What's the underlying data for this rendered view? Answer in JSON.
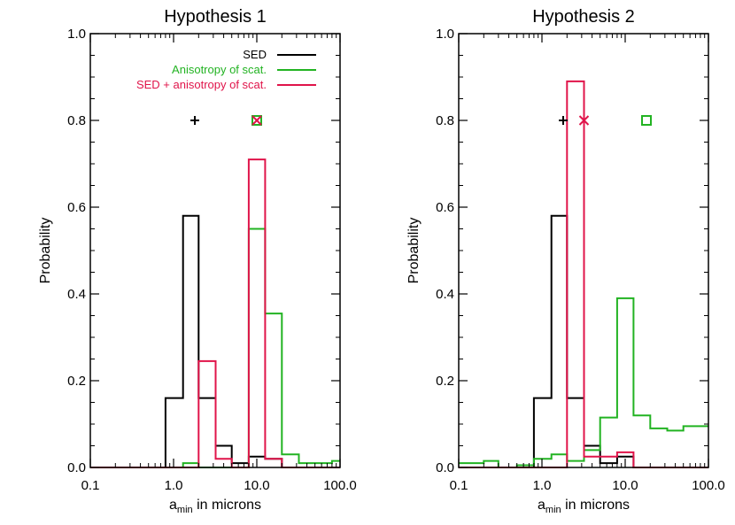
{
  "chart_data": [
    {
      "type": "histogram",
      "title": "Hypothesis 1",
      "xlabel": "a_min in microns",
      "xlabel_main": "a",
      "xlabel_sub": "min",
      "xlabel_rest": " in microns",
      "ylabel": "Probability",
      "xscale": "log",
      "xlim": [
        0.1,
        100.0
      ],
      "ylim": [
        0.0,
        1.0
      ],
      "xticks": [
        "0.1",
        "1.0",
        "10.0",
        "100.0"
      ],
      "yticks": [
        "0.0",
        "0.2",
        "0.4",
        "0.6",
        "0.8",
        "1.0"
      ],
      "legend_position": "top-right",
      "bin_edges": [
        0.1,
        0.2,
        0.3,
        0.5,
        0.8,
        1.3,
        2.0,
        3.2,
        5.0,
        8.0,
        12.6,
        20.0,
        32.0,
        50.0,
        80.0,
        100.0
      ],
      "series": [
        {
          "name": "SED",
          "color": "#000000",
          "values": [
            0.0,
            0.0,
            0.0,
            0.0,
            0.16,
            0.58,
            0.16,
            0.05,
            0.01,
            0.025,
            0.02,
            0.0,
            0.0,
            0.0,
            0.0
          ]
        },
        {
          "name": "Anisotropy of scat.",
          "color": "#22b322",
          "values": [
            0.0,
            0.0,
            0.0,
            0.0,
            0.0,
            0.01,
            0.0,
            0.0,
            0.0,
            0.55,
            0.355,
            0.03,
            0.01,
            0.01,
            0.015
          ]
        },
        {
          "name": "SED + anisotropy of scat.",
          "color": "#e0144a",
          "values": [
            0.0,
            0.0,
            0.0,
            0.0,
            0.0,
            0.0,
            0.245,
            0.02,
            0.0,
            0.71,
            0.02,
            0.0,
            0.0,
            0.0,
            0.0
          ]
        }
      ],
      "markers": [
        {
          "series": "SED",
          "symbol": "plus",
          "x": 1.8,
          "y": 0.8
        },
        {
          "series": "Anisotropy of scat.",
          "symbol": "square",
          "x": 10.0,
          "y": 0.8
        },
        {
          "series": "SED + anisotropy of scat.",
          "symbol": "x",
          "x": 10.0,
          "y": 0.8
        }
      ]
    },
    {
      "type": "histogram",
      "title": "Hypothesis 2",
      "xlabel": "a_min in microns",
      "xlabel_main": "a",
      "xlabel_sub": "min",
      "xlabel_rest": " in microns",
      "ylabel": "Probability",
      "xscale": "log",
      "xlim": [
        0.1,
        100.0
      ],
      "ylim": [
        0.0,
        1.0
      ],
      "xticks": [
        "0.1",
        "1.0",
        "10.0",
        "100.0"
      ],
      "yticks": [
        "0.0",
        "0.2",
        "0.4",
        "0.6",
        "0.8",
        "1.0"
      ],
      "bin_edges": [
        0.1,
        0.2,
        0.3,
        0.5,
        0.8,
        1.3,
        2.0,
        3.2,
        5.0,
        8.0,
        12.6,
        20.0,
        32.0,
        50.0,
        80.0,
        100.0
      ],
      "series": [
        {
          "name": "SED",
          "color": "#000000",
          "values": [
            0.0,
            0.0,
            0.0,
            0.0,
            0.16,
            0.58,
            0.16,
            0.05,
            0.01,
            0.025,
            0.0,
            0.0,
            0.0,
            0.0,
            0.0
          ]
        },
        {
          "name": "Anisotropy of scat.",
          "color": "#22b322",
          "values": [
            0.01,
            0.015,
            0.0,
            0.005,
            0.02,
            0.03,
            0.015,
            0.04,
            0.115,
            0.39,
            0.12,
            0.09,
            0.085,
            0.095,
            0.095
          ]
        },
        {
          "name": "SED + anisotropy of scat.",
          "color": "#e0144a",
          "values": [
            0.0,
            0.0,
            0.0,
            0.0,
            0.0,
            0.0,
            0.89,
            0.025,
            0.025,
            0.035,
            0.0,
            0.0,
            0.0,
            0.0,
            0.0
          ]
        }
      ],
      "markers": [
        {
          "series": "SED",
          "symbol": "plus",
          "x": 1.8,
          "y": 0.8
        },
        {
          "series": "SED + anisotropy of scat.",
          "symbol": "x",
          "x": 3.2,
          "y": 0.8
        },
        {
          "series": "Anisotropy of scat.",
          "symbol": "square",
          "x": 18.0,
          "y": 0.8
        }
      ]
    }
  ]
}
